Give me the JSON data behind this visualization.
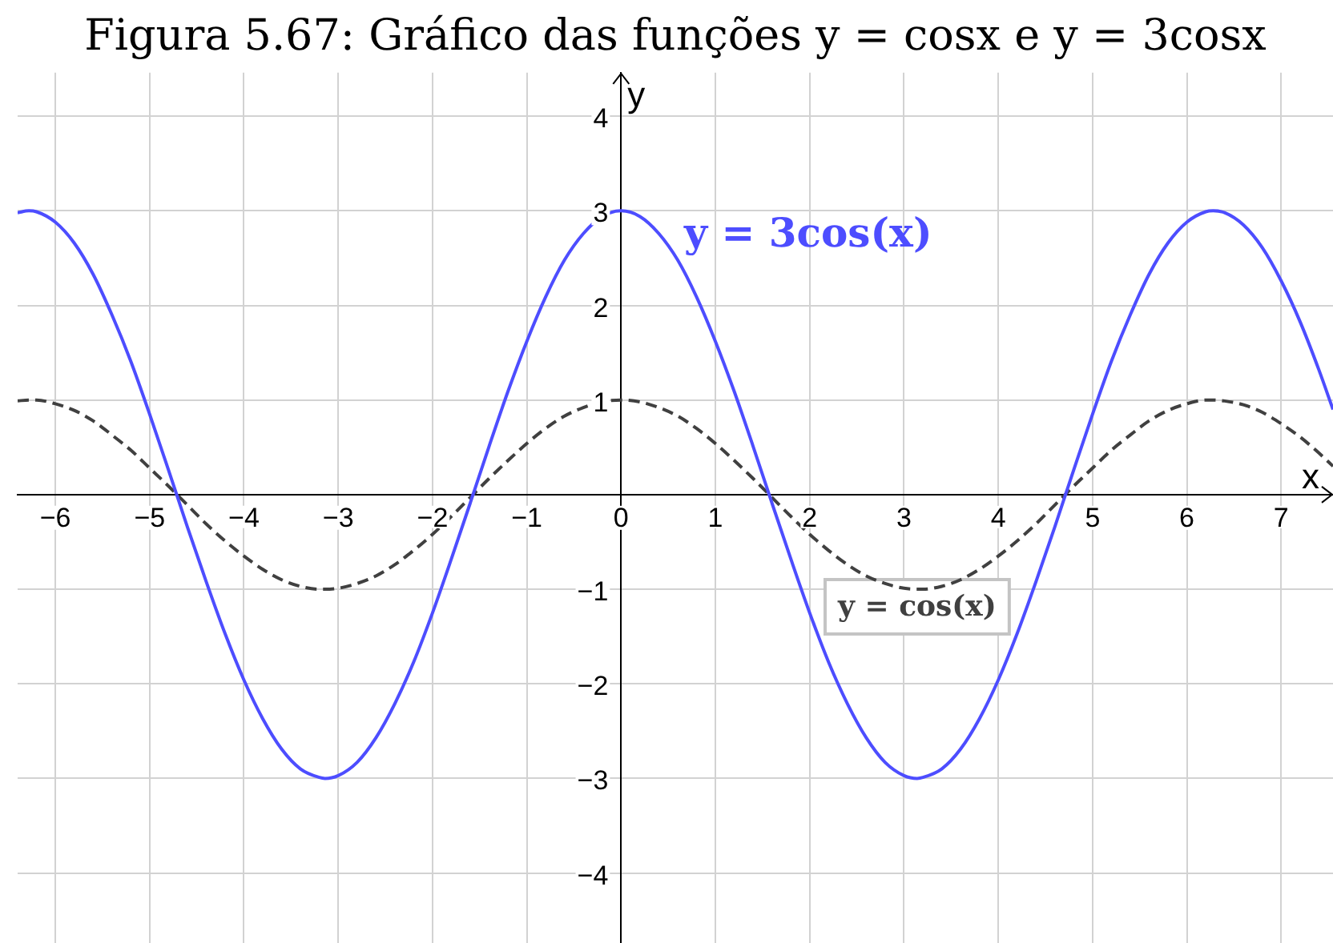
{
  "chart_data": {
    "type": "line",
    "title": "Figura 5.67: Gráfico das funções y = cosx e y = 3cosx",
    "xlabel": "x",
    "ylabel": "y",
    "x": [
      -6.4,
      -6.28,
      -6.2,
      -6.0,
      -5.8,
      -5.6,
      -5.4,
      -5.2,
      -5.0,
      -4.8,
      -4.6,
      -4.4,
      -4.2,
      -4.0,
      -3.8,
      -3.6,
      -3.4,
      -3.2,
      -3.14,
      -3.0,
      -2.8,
      -2.6,
      -2.4,
      -2.2,
      -2.0,
      -1.8,
      -1.6,
      -1.4,
      -1.2,
      -1.0,
      -0.8,
      -0.6,
      -0.4,
      -0.2,
      0,
      0.2,
      0.4,
      0.6,
      0.8,
      1.0,
      1.2,
      1.4,
      1.6,
      1.8,
      2.0,
      2.2,
      2.4,
      2.6,
      2.8,
      3.0,
      3.14,
      3.2,
      3.4,
      3.6,
      3.8,
      4.0,
      4.2,
      4.4,
      4.6,
      4.8,
      5.0,
      5.2,
      5.4,
      5.6,
      5.8,
      6.0,
      6.2,
      6.28,
      6.4,
      6.6,
      6.8,
      7.0,
      7.2,
      7.4,
      7.55
    ],
    "series": [
      {
        "color": "#4d4dff",
        "line_style": "solid",
        "values": [
          2.98,
          3.0,
          2.99,
          2.88,
          2.66,
          2.33,
          1.9,
          1.41,
          0.85,
          0.26,
          -0.34,
          -0.92,
          -1.47,
          -1.96,
          -2.37,
          -2.69,
          -2.9,
          -2.99,
          -3.0,
          -2.97,
          -2.83,
          -2.57,
          -2.21,
          -1.77,
          -1.25,
          -0.68,
          -0.09,
          0.51,
          1.09,
          1.62,
          2.09,
          2.48,
          2.76,
          2.94,
          3.0,
          2.94,
          2.76,
          2.48,
          2.09,
          1.62,
          1.09,
          0.51,
          -0.09,
          -0.68,
          -1.25,
          -1.77,
          -2.21,
          -2.57,
          -2.83,
          -2.97,
          -3.0,
          -2.99,
          -2.9,
          -2.69,
          -2.37,
          -1.96,
          -1.47,
          -0.92,
          -0.34,
          0.26,
          0.85,
          1.41,
          1.9,
          2.33,
          2.66,
          2.88,
          2.99,
          3.0,
          2.98,
          2.85,
          2.61,
          2.26,
          1.83,
          1.32,
          0.9
        ]
      },
      {
        "color": "#404040",
        "line_style": "dashed",
        "values": [
          0.99,
          1.0,
          1.0,
          0.96,
          0.89,
          0.78,
          0.63,
          0.47,
          0.28,
          0.09,
          -0.11,
          -0.31,
          -0.49,
          -0.65,
          -0.79,
          -0.9,
          -0.97,
          -1.0,
          -1.0,
          -0.99,
          -0.94,
          -0.86,
          -0.74,
          -0.59,
          -0.42,
          -0.23,
          -0.03,
          0.17,
          0.36,
          0.54,
          0.7,
          0.83,
          0.92,
          0.98,
          1.0,
          0.98,
          0.92,
          0.83,
          0.7,
          0.54,
          0.36,
          0.17,
          -0.03,
          -0.23,
          -0.42,
          -0.59,
          -0.74,
          -0.86,
          -0.94,
          -0.99,
          -1.0,
          -1.0,
          -0.97,
          -0.9,
          -0.79,
          -0.65,
          -0.49,
          -0.31,
          -0.11,
          0.09,
          0.28,
          0.47,
          0.63,
          0.78,
          0.89,
          0.96,
          1.0,
          1.0,
          0.99,
          0.95,
          0.87,
          0.75,
          0.61,
          0.44,
          0.3
        ]
      }
    ],
    "annotations": [
      {
        "text": "y = 3cos(x)",
        "x": 0.6,
        "y": 2.48
      },
      {
        "text": "y = cos(x)",
        "x": 3.14,
        "y": -1.0
      }
    ],
    "xlim": [
      -6.4,
      7.55
    ],
    "ylim": [
      -4.74,
      4.46
    ],
    "xticks": [
      {
        "value": -6,
        "label": "−6"
      },
      {
        "value": -5,
        "label": "−5"
      },
      {
        "value": -4,
        "label": "−4"
      },
      {
        "value": -3,
        "label": "−3"
      },
      {
        "value": -2,
        "label": "−2"
      },
      {
        "value": -1,
        "label": "−1"
      },
      0,
      1,
      2,
      3,
      4,
      5,
      6,
      7
    ],
    "yticks": [
      {
        "value": -4,
        "label": "−4"
      },
      {
        "value": -3,
        "label": "−3"
      },
      {
        "value": -2,
        "label": "−2"
      },
      {
        "value": -1,
        "label": "−1"
      },
      1,
      2,
      3,
      4
    ],
    "grid": true
  }
}
